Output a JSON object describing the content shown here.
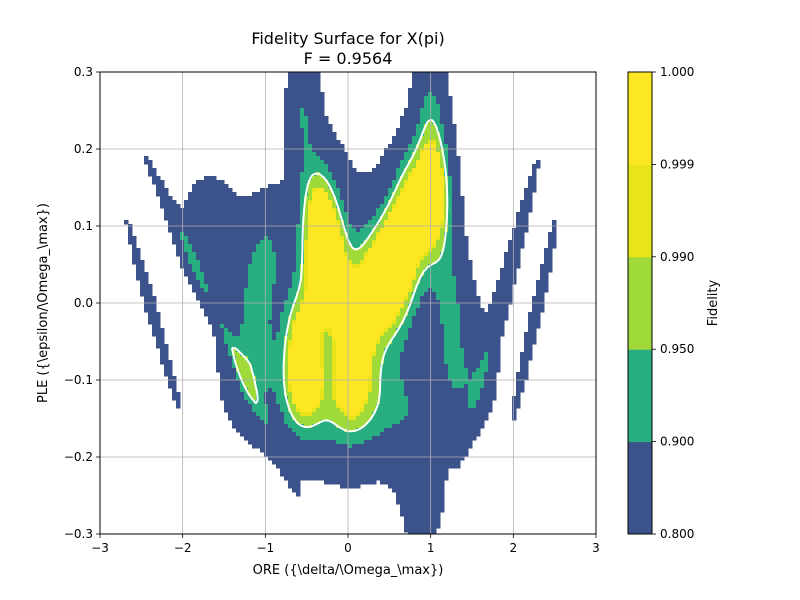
{
  "chart_data": {
    "type": "contour",
    "title": "Fidelity Surface for X(pi)",
    "subtitle": "F = 0.9564",
    "xlabel": "ORE ({\\delta/\\Omega_\\max})",
    "ylabel": "PLE ({\\epsilon/\\Omega_\\max})",
    "xlim": [
      -3,
      3
    ],
    "ylim": [
      -0.3,
      0.3
    ],
    "x_ticks": [
      -3,
      -2,
      -1,
      0,
      1,
      2,
      3
    ],
    "x_tick_labels": [
      "−3",
      "−2",
      "−1",
      "0",
      "1",
      "2",
      "3"
    ],
    "y_ticks": [
      -0.3,
      -0.2,
      -0.1,
      0.0,
      0.1,
      0.2,
      0.3
    ],
    "y_tick_labels": [
      "−0.3",
      "−0.2",
      "−0.1",
      "0.0",
      "0.1",
      "0.2",
      "0.3"
    ],
    "grid": true,
    "contour_levels": [
      0.8,
      0.9,
      0.95,
      0.99,
      0.999,
      1.0
    ],
    "level_colors": [
      "#3b528b",
      "#28ae80",
      "#a0da39",
      "#e8e419",
      "#fde725"
    ],
    "line_level": 0.95,
    "line_color": "#ffffff",
    "colorbar": {
      "label": "Fidelity",
      "tick_labels": [
        "0.800",
        "0.900",
        "0.950",
        "0.990",
        "0.999",
        "1.000"
      ]
    }
  }
}
